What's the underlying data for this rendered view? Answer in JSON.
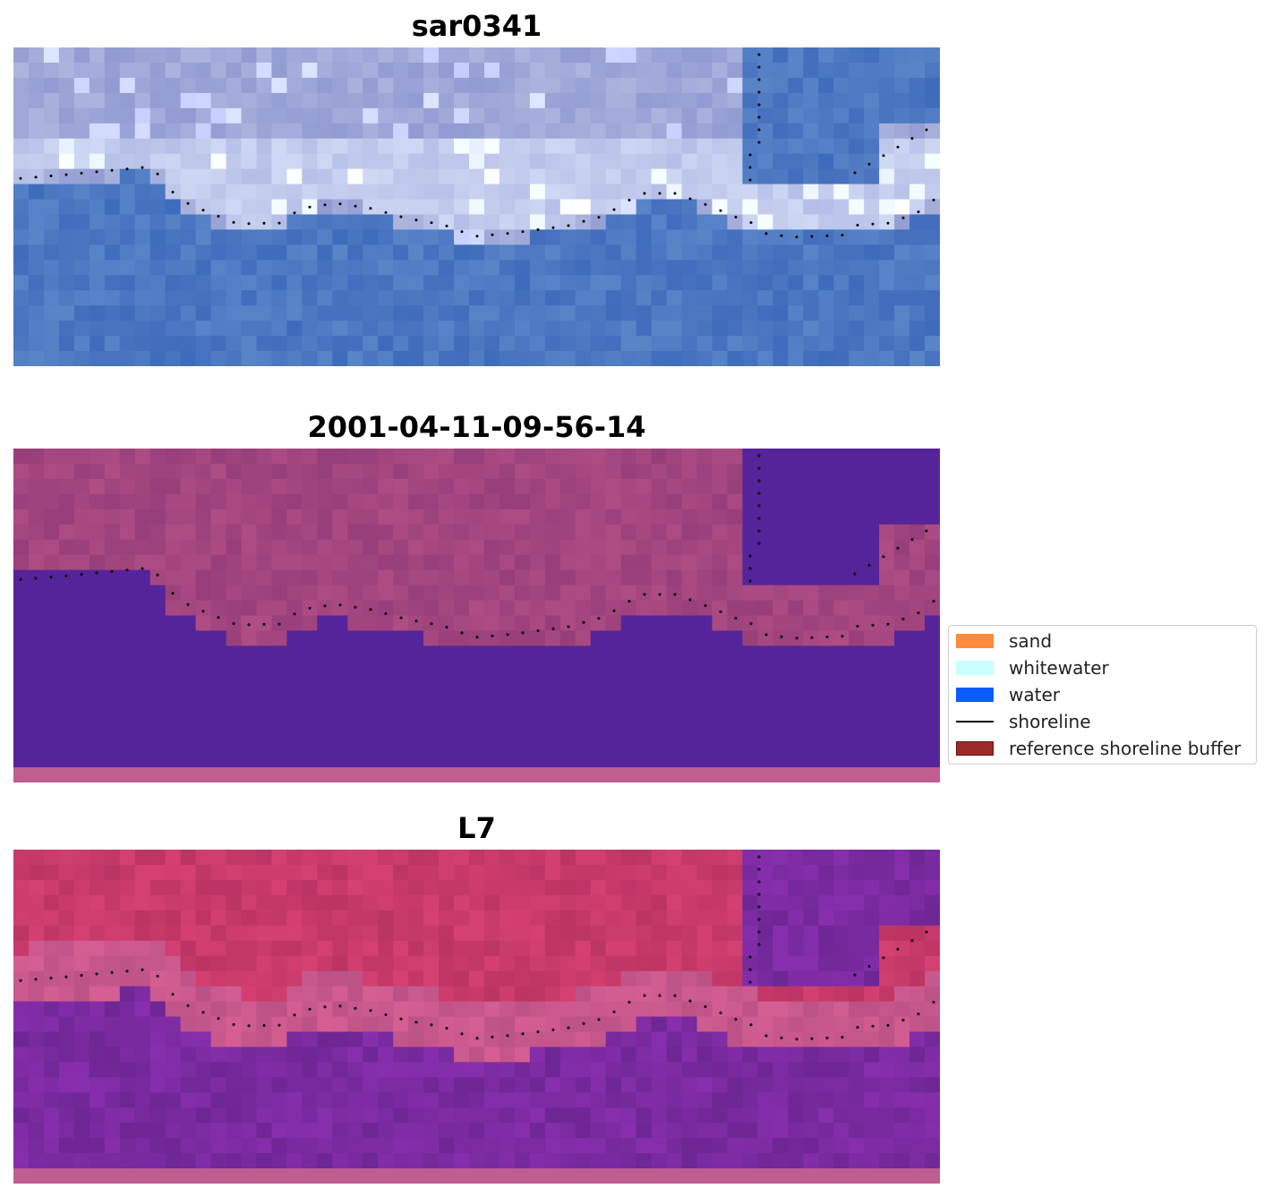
{
  "panels": [
    {
      "title": "sar0341",
      "kind": "rgb"
    },
    {
      "title": "2001-04-11-09-56-14",
      "kind": "classified"
    },
    {
      "title": "L7",
      "kind": "index"
    }
  ],
  "legend": {
    "items": [
      {
        "label": "sand",
        "color": "#ff8c3a",
        "type": "patch"
      },
      {
        "label": "whitewater",
        "color": "#c8ffff",
        "type": "patch"
      },
      {
        "label": "water",
        "color": "#0a5cff",
        "type": "patch"
      },
      {
        "label": "shoreline",
        "color": "#000000",
        "type": "line"
      },
      {
        "label": "reference shoreline buffer",
        "color": "#9b2b2b",
        "type": "patch"
      }
    ]
  },
  "colors": {
    "rgb_water": "#4c78c2",
    "rgb_land": "#9fa8d8",
    "classified_water": "#55249a",
    "classified_land": "#a2457f",
    "classified_bottom_band": "#c05e92",
    "index_land": "#c83a6a",
    "index_beach": "#c8588c",
    "index_water": "#7a2aa0",
    "shoreline_dots": "#000000"
  }
}
